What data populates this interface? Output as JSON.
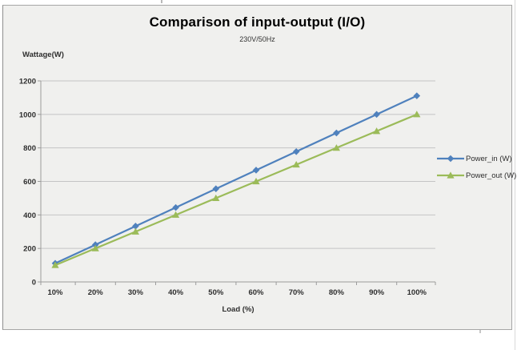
{
  "style": {
    "chart_bg": "#f0f0ee",
    "frame_border": "#a6a6a6",
    "gridline": "#c4c4c4",
    "axis": "#9b9b9b",
    "tick_text": "#2e2e2e",
    "power_in_color": "#4f81bd",
    "power_out_color": "#9bbb59"
  },
  "chart_data": {
    "type": "line",
    "title": "Comparison of input-output (I/O)",
    "subtitle": "230V/50Hz",
    "xlabel": "Load (%)",
    "ylabel": "Wattage(W)",
    "categories": [
      "10%",
      "20%",
      "30%",
      "40%",
      "50%",
      "60%",
      "70%",
      "80%",
      "90%",
      "100%"
    ],
    "series": [
      {
        "name": "Power_in (W)",
        "color": "#4f81bd",
        "marker": "diamond",
        "values": [
          111,
          222,
          333,
          444,
          556,
          667,
          778,
          889,
          1000,
          1111
        ]
      },
      {
        "name": "Power_out (W)",
        "color": "#9bbb59",
        "marker": "triangle",
        "values": [
          100,
          200,
          300,
          400,
          500,
          600,
          700,
          800,
          900,
          1000
        ]
      }
    ],
    "ylim": [
      0,
      1200
    ],
    "yticks": [
      0,
      200,
      400,
      600,
      800,
      1000,
      1200
    ],
    "grid": "horizontal",
    "legend_position": "right"
  }
}
